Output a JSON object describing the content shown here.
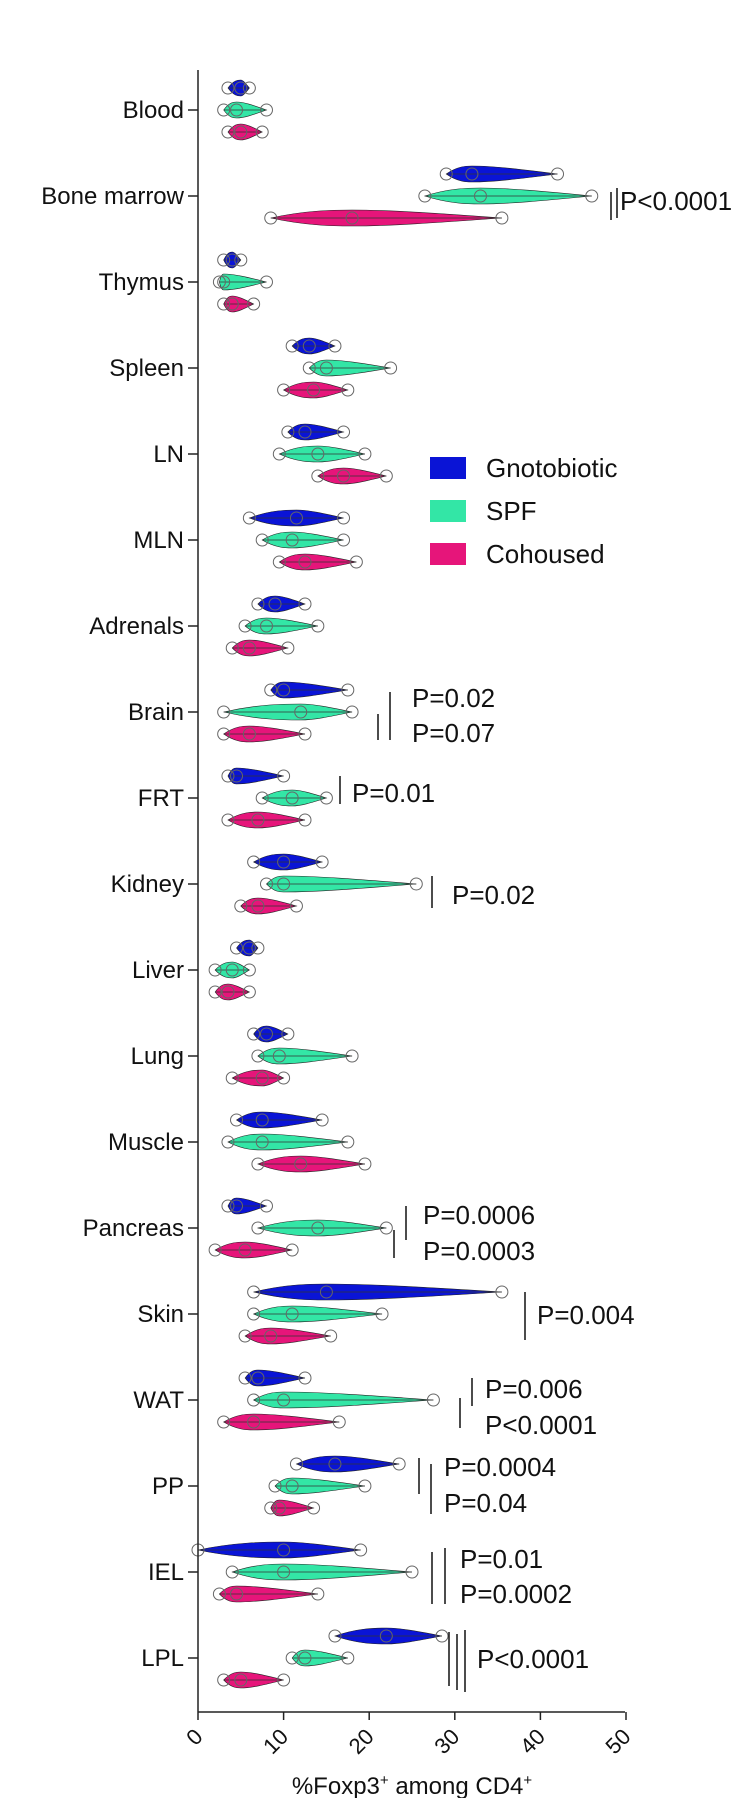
{
  "chart_data": {
    "type": "violin",
    "orientation": "horizontal",
    "xlabel": "%Foxp3+ among CD4+",
    "xlabel_main": "%Foxp3",
    "xlabel_sup1": "+",
    "xlabel_mid": " among  CD4",
    "xlabel_sup2": "+",
    "xlim": [
      0,
      50
    ],
    "xticks": [
      "0",
      "10",
      "20",
      "30",
      "40",
      "50"
    ],
    "legend": {
      "position": "center-right",
      "entries": [
        {
          "name": "Gnotobiotic",
          "color": "#0a14d6"
        },
        {
          "name": "SPF",
          "color": "#33e6a6"
        },
        {
          "name": "Cohoused",
          "color": "#e6157a"
        }
      ]
    },
    "categories": [
      "Blood",
      "Bone marrow",
      "Thymus",
      "Spleen",
      "LN",
      "MLN",
      "Adrenals",
      "Brain",
      "FRT",
      "Kidney",
      "Liver",
      "Lung",
      "Muscle",
      "Pancreas",
      "Skin",
      "WAT",
      "PP",
      "IEL",
      "LPL"
    ],
    "series": [
      {
        "name": "Gnotobiotic",
        "ranges": [
          [
            3.5,
            6
          ],
          [
            29,
            42
          ],
          [
            3,
            5
          ],
          [
            11,
            16
          ],
          [
            10.5,
            17
          ],
          [
            6,
            17
          ],
          [
            7,
            12.5
          ],
          [
            8.5,
            17.5
          ],
          [
            3.5,
            10
          ],
          [
            6.5,
            14.5
          ],
          [
            4.5,
            7
          ],
          [
            6.5,
            10.5
          ],
          [
            4.5,
            14.5
          ],
          [
            3.5,
            8
          ],
          [
            6.5,
            35.5
          ],
          [
            5.5,
            12.5
          ],
          [
            11.5,
            23.5
          ],
          [
            0,
            19
          ],
          [
            16,
            28.5
          ]
        ],
        "medians": [
          5,
          32,
          4,
          13,
          12.5,
          11.5,
          9,
          10,
          4.5,
          10,
          6,
          8,
          7.5,
          4.5,
          15,
          7,
          16,
          10,
          22
        ]
      },
      {
        "name": "SPF",
        "ranges": [
          [
            3,
            8
          ],
          [
            26.5,
            46
          ],
          [
            2.5,
            8
          ],
          [
            13,
            22.5
          ],
          [
            9.5,
            19.5
          ],
          [
            7.5,
            17
          ],
          [
            5.5,
            14
          ],
          [
            3,
            18
          ],
          [
            7.5,
            15
          ],
          [
            8,
            25.5
          ],
          [
            2,
            6
          ],
          [
            7,
            18
          ],
          [
            3.5,
            17.5
          ],
          [
            7,
            22
          ],
          [
            6.5,
            21.5
          ],
          [
            6.5,
            27.5
          ],
          [
            9,
            19.5
          ],
          [
            4,
            25
          ],
          [
            11,
            17.5
          ]
        ],
        "medians": [
          4.5,
          33,
          3,
          15,
          14,
          11,
          8,
          12,
          11,
          10,
          4,
          9.5,
          7.5,
          14,
          11,
          10,
          11,
          10,
          12.5
        ]
      },
      {
        "name": "Cohoused",
        "ranges": [
          [
            3.5,
            7.5
          ],
          [
            8.5,
            35.5
          ],
          [
            3,
            6.5
          ],
          [
            10,
            17.5
          ],
          [
            14,
            22
          ],
          [
            9.5,
            18.5
          ],
          [
            4,
            10.5
          ],
          [
            3,
            12.5
          ],
          [
            3.5,
            12.5
          ],
          [
            5,
            11.5
          ],
          [
            2,
            6
          ],
          [
            4,
            10
          ],
          [
            7,
            19.5
          ],
          [
            2,
            11
          ],
          [
            5.5,
            15.5
          ],
          [
            3,
            16.5
          ],
          [
            8.5,
            13.5
          ],
          [
            2.5,
            14
          ],
          [
            3,
            10
          ]
        ],
        "medians": [
          5,
          18,
          4,
          13.5,
          17,
          12.5,
          6,
          6,
          7,
          7,
          3.5,
          7.5,
          12,
          5.5,
          8.5,
          6.5,
          9.5,
          4.5,
          5
        ]
      }
    ],
    "annotations": [
      {
        "category": "Bone marrow",
        "texts": [
          "P<0.0001"
        ]
      },
      {
        "category": "Brain",
        "texts": [
          "P=0.02",
          "P=0.07"
        ]
      },
      {
        "category": "FRT",
        "texts": [
          "P=0.01"
        ]
      },
      {
        "category": "Kidney",
        "texts": [
          "P=0.02"
        ]
      },
      {
        "category": "Pancreas",
        "texts": [
          "P=0.0006",
          "P=0.0003"
        ]
      },
      {
        "category": "Skin",
        "texts": [
          "P=0.004"
        ]
      },
      {
        "category": "WAT",
        "texts": [
          "P=0.006",
          "P<0.0001"
        ]
      },
      {
        "category": "PP",
        "texts": [
          "P=0.0004",
          "P=0.04"
        ]
      },
      {
        "category": "IEL",
        "texts": [
          "P=0.01",
          "P=0.0002"
        ]
      },
      {
        "category": "LPL",
        "texts": [
          "P<0.0001"
        ]
      }
    ]
  }
}
